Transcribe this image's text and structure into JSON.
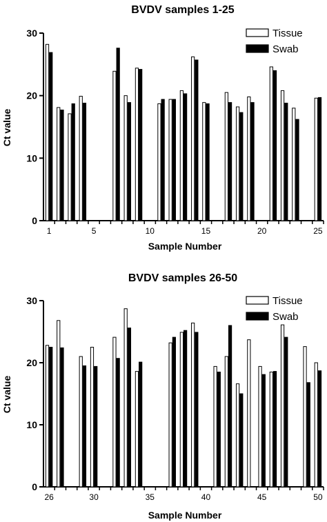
{
  "chart_data": [
    {
      "type": "bar",
      "title": "BVDV samples 1-25",
      "xlabel": "Sample Number",
      "ylabel": "Ct value",
      "ylim": [
        0,
        30
      ],
      "yticks": [
        0,
        10,
        20,
        30
      ],
      "xlim": [
        0.5,
        25.5
      ],
      "xticks": [
        1,
        5,
        10,
        15,
        20,
        25
      ],
      "grid": false,
      "legend_position": "top-right",
      "x": [
        1,
        2,
        3,
        4,
        5,
        6,
        7,
        8,
        9,
        10,
        11,
        12,
        13,
        14,
        15,
        16,
        17,
        18,
        19,
        20,
        21,
        22,
        23,
        24,
        25
      ],
      "series": [
        {
          "name": "Tissue",
          "color": "#ffffff",
          "values": [
            28.2,
            18.1,
            17.1,
            19.9,
            null,
            null,
            23.9,
            20.0,
            24.4,
            null,
            18.7,
            19.4,
            20.8,
            26.2,
            18.9,
            null,
            20.5,
            18.2,
            19.8,
            null,
            24.6,
            20.8,
            18.0,
            null,
            19.6
          ]
        },
        {
          "name": "Swab",
          "color": "#000000",
          "values": [
            26.9,
            17.7,
            18.7,
            18.8,
            null,
            null,
            27.6,
            18.9,
            24.2,
            null,
            19.4,
            19.4,
            20.3,
            25.7,
            18.7,
            null,
            18.9,
            17.3,
            18.9,
            null,
            24.0,
            18.8,
            16.2,
            null,
            19.7
          ]
        }
      ]
    },
    {
      "type": "bar",
      "title": "BVDV samples 26-50",
      "xlabel": "Sample Number",
      "ylabel": "Ct value",
      "ylim": [
        0,
        30
      ],
      "yticks": [
        0,
        10,
        20,
        30
      ],
      "xlim": [
        25.5,
        50.5
      ],
      "xticks": [
        26,
        30,
        35,
        40,
        45,
        50
      ],
      "grid": false,
      "legend_position": "top-right",
      "x": [
        26,
        27,
        28,
        29,
        30,
        31,
        32,
        33,
        34,
        35,
        36,
        37,
        38,
        39,
        40,
        41,
        42,
        43,
        44,
        45,
        46,
        47,
        48,
        49,
        50
      ],
      "series": [
        {
          "name": "Tissue",
          "color": "#ffffff",
          "values": [
            22.8,
            26.8,
            null,
            21.0,
            22.5,
            null,
            24.1,
            28.7,
            18.6,
            null,
            null,
            23.2,
            24.9,
            26.4,
            null,
            19.4,
            21.0,
            16.6,
            23.7,
            19.4,
            18.5,
            26.1,
            null,
            22.6,
            20.0
          ]
        },
        {
          "name": "Swab",
          "color": "#000000",
          "values": [
            22.5,
            22.4,
            null,
            19.5,
            19.4,
            null,
            20.7,
            25.6,
            20.1,
            null,
            null,
            24.1,
            25.2,
            24.9,
            null,
            18.5,
            26.0,
            15.0,
            null,
            18.1,
            18.6,
            24.1,
            null,
            16.8,
            18.7
          ]
        }
      ]
    }
  ]
}
